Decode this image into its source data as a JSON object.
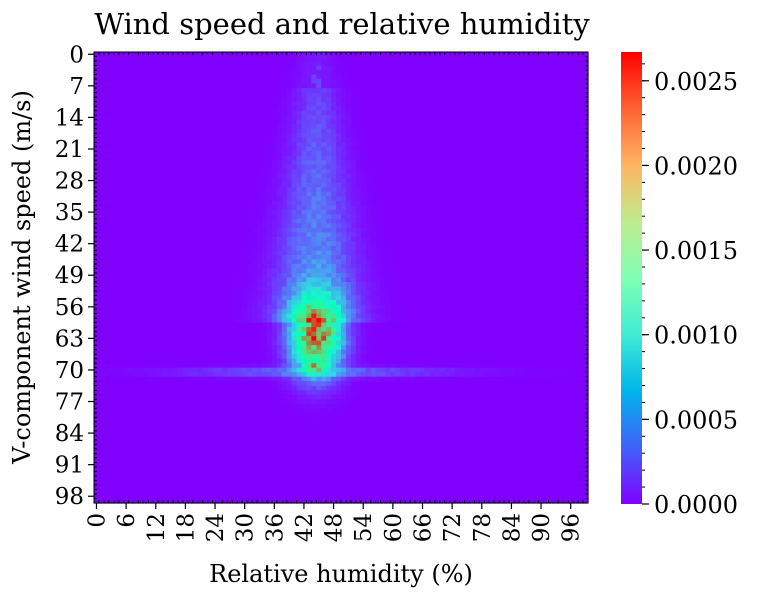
{
  "chart_data": {
    "type": "heatmap",
    "title": "Wind speed and relative humidity",
    "xlabel": "Relative humidity (%)",
    "ylabel": "V-component wind speed (m/s)",
    "x_ticks": [
      "0",
      "6",
      "12",
      "18",
      "24",
      "30",
      "36",
      "42",
      "48",
      "54",
      "60",
      "66",
      "72",
      "78",
      "84",
      "90",
      "96"
    ],
    "y_ticks": [
      "0",
      "7",
      "14",
      "21",
      "28",
      "35",
      "42",
      "49",
      "56",
      "63",
      "70",
      "77",
      "84",
      "91",
      "98"
    ],
    "x_bins": 100,
    "y_bins": 100,
    "xlim": [
      0,
      100
    ],
    "ylim": [
      0,
      100
    ],
    "y_inverted": true,
    "colormap": "rainbow",
    "colorbar": {
      "ticks": [
        "0.0000",
        "0.0005",
        "0.0010",
        "0.0015",
        "0.0020",
        "0.0025"
      ],
      "vmin": 0,
      "vmax": 0.00267
    },
    "density_summary": {
      "peak_x": 45,
      "peak_y": 70,
      "peak_value": 0.0026,
      "hot_region": {
        "x_range": [
          42,
          49
        ],
        "y_range": [
          56,
          71
        ],
        "value": 0.0022
      },
      "horizontal_band": {
        "y": 71,
        "x_range": [
          10,
          88
        ]
      },
      "vertical_plume": {
        "x_range": [
          39,
          50
        ],
        "y_range": [
          5,
          56
        ]
      }
    }
  }
}
